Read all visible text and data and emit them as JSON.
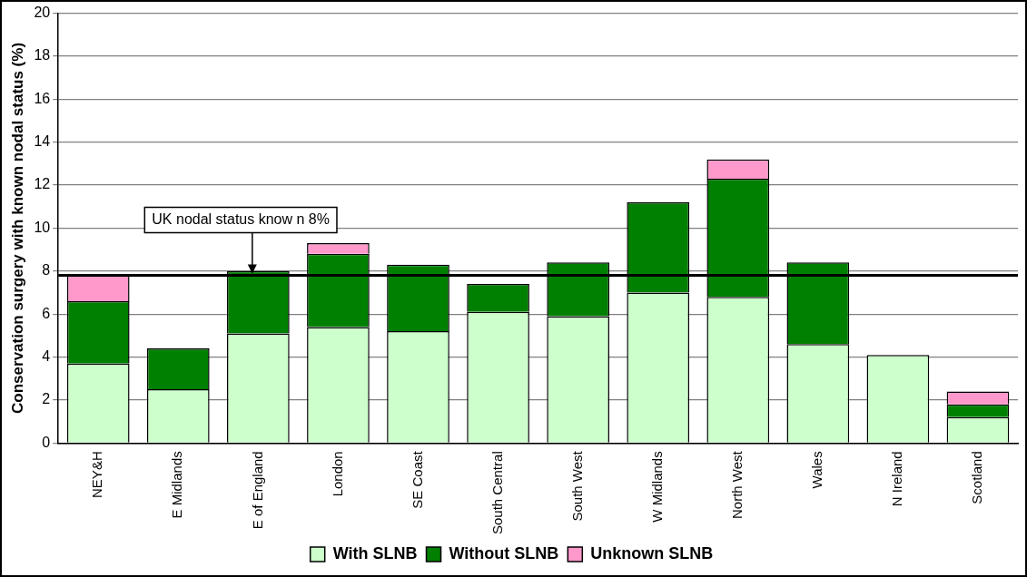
{
  "chart_data": {
    "type": "bar",
    "stacked": true,
    "ylabel": "Conservation surgery with known nodal status (%)",
    "categories": [
      "NEY&H",
      "E Midlands",
      "E of England",
      "London",
      "SE Coast",
      "South Central",
      "South West",
      "W Midlands",
      "North West",
      "Wales",
      "N Ireland",
      "Scotland"
    ],
    "series": [
      {
        "name": "With SLNB",
        "color": "#ccffcc",
        "values": [
          3.7,
          2.5,
          5.1,
          5.4,
          5.2,
          6.1,
          5.9,
          7.0,
          6.8,
          4.6,
          4.1,
          1.2
        ]
      },
      {
        "name": "Without SLNB",
        "color": "#008000",
        "values": [
          2.9,
          1.9,
          2.9,
          3.4,
          3.1,
          1.3,
          2.5,
          4.2,
          5.5,
          3.8,
          0,
          0.6
        ]
      },
      {
        "name": "Unknown SLNB",
        "color": "#ff99cc",
        "values": [
          1.2,
          0,
          0,
          0.5,
          0,
          0,
          0,
          0,
          0.9,
          0,
          0,
          0.6
        ]
      }
    ],
    "ylim": [
      0,
      20
    ],
    "yticks": [
      0,
      2,
      4,
      6,
      8,
      10,
      12,
      14,
      16,
      18,
      20
    ],
    "grid": "y",
    "legend": "bottom",
    "ref_lines": [
      {
        "axis": "y",
        "value": 7.8,
        "label": "UK nodal status know n 8%",
        "color": "#000000"
      }
    ]
  }
}
